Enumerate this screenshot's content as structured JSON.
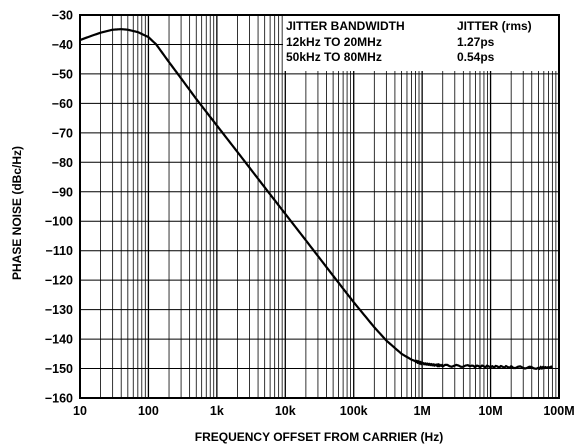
{
  "chart_data": {
    "type": "line",
    "x_scale": "log",
    "xlabel": "FREQUENCY OFFSET FROM CARRIER (Hz)",
    "ylabel": "PHASE NOISE (dBc/Hz)",
    "xlim": [
      10,
      100000000
    ],
    "ylim": [
      -160,
      -30
    ],
    "grid": true,
    "x_ticks": [
      "10",
      "100",
      "1k",
      "10k",
      "100k",
      "1M",
      "10M",
      "100M"
    ],
    "y_ticks": [
      "−30",
      "−40",
      "−50",
      "−60",
      "−70",
      "−80",
      "−90",
      "−100",
      "−110",
      "−120",
      "−130",
      "−140",
      "−150",
      "−160"
    ],
    "series": [
      {
        "x": [
          10,
          15,
          20,
          30,
          40,
          50,
          70,
          100,
          130,
          200,
          300,
          500,
          1000,
          2000,
          5000,
          10000,
          20000,
          50000,
          100000,
          200000,
          300000,
          500000,
          700000,
          1000000,
          1500000,
          2000000,
          5000000,
          10000000,
          20000000,
          50000000,
          80000000
        ],
        "y": [
          -38.5,
          -37,
          -36,
          -35,
          -34.8,
          -35,
          -35.8,
          -37.5,
          -40,
          -46,
          -51.5,
          -58.5,
          -67.5,
          -76.5,
          -88.5,
          -97.5,
          -106.5,
          -118.5,
          -127.5,
          -136,
          -140.5,
          -145,
          -147,
          -148.3,
          -148.8,
          -149,
          -149.2,
          -149.3,
          -149.5,
          -149.8,
          -149.5
        ]
      }
    ],
    "legend_table": {
      "headers": [
        "JITTER BANDWIDTH",
        "JITTER (rms)"
      ],
      "rows": [
        [
          "12kHz TO 20MHz",
          "1.27ps"
        ],
        [
          "50kHz TO 80MHz",
          "0.54ps"
        ]
      ],
      "placement": "top-right"
    }
  }
}
